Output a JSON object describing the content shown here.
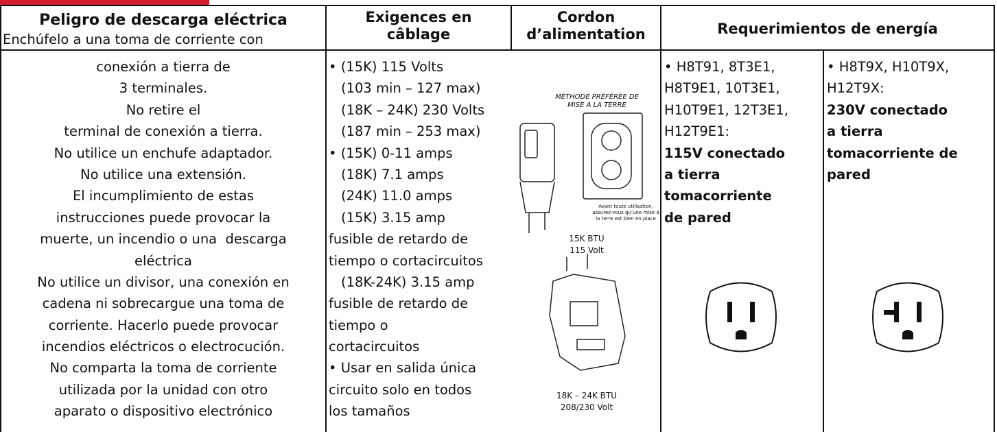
{
  "header": {
    "title": "Peligro de descarga eléctrica",
    "subtitle": "Enchúfelo a una toma de corriente con",
    "wiring": [
      "Exigences en",
      "câblage"
    ],
    "cord": [
      "Cordon",
      "d’alimentation"
    ],
    "power": "Requerimientos de energía"
  },
  "warning": {
    "lines": [
      "conexión a tierra de",
      "3 terminales.",
      "No retire el",
      "terminal de conexión a tierra.",
      "No utilice un enchufe adaptador.",
      "No utilice una extensión.",
      "El incumplimiento de estas",
      "instrucciones puede provocar la",
      "muerte, un incendio o una  descarga",
      "eléctrica",
      "No utilice un divisor, una conexión en",
      "cadena ni sobrecargue una toma de",
      "corriente. Hacerlo puede provocar",
      "incendios eléctricos o electrocución.",
      "No comparta la toma de corriente",
      "utilizada por la unidad con otro",
      "aparato o dispositivo electrónico"
    ]
  },
  "wiring": {
    "lines": [
      "• (15K) 115 Volts",
      "(103 min – 127 max)",
      "(18K – 24K) 230 Volts",
      "(187 min – 253 max)",
      "• (15K) 0-11 amps",
      "(18K) 7.1 amps",
      "(24K) 11.0 amps",
      "(15K) 3.15 amp",
      "fusible de retardo de",
      "tiempo o cortacircuitos",
      "(18K-24K) 3.15 amp",
      "fusible de retardo de",
      "tiempo o",
      "cortacircuitos",
      "• Usar en salida única",
      "circuito solo en todos",
      "los tamaños"
    ]
  },
  "cord": {
    "preferred": [
      "MÉTHODE PRÉFÉRÉE DE",
      "MISE À LA TERRE"
    ],
    "notice": [
      "Avant toute utilisation,",
      "assurez-vous qu’une mise à",
      "la terre est bien en place"
    ],
    "plug_15k": [
      "15K BTU",
      "115 Volt"
    ],
    "plug_18k_24k": [
      "18K – 24K BTU",
      "208/230 Volt"
    ]
  },
  "power_115v": {
    "models": [
      "• H8T91, 8T3E1,",
      "H8T9E1, 10T3E1,",
      "H10T9E1, 12T3E1,",
      "H12T9E1:"
    ],
    "outlet": [
      "115V conectado",
      "a tierra",
      "tomacorriente",
      "de pared"
    ]
  },
  "power_230v": {
    "models": [
      "• H8T9X, H10T9X,",
      "H12T9X:"
    ],
    "outlet": [
      "230V conectado",
      "a tierra",
      "tomacorriente de",
      "pared"
    ]
  }
}
